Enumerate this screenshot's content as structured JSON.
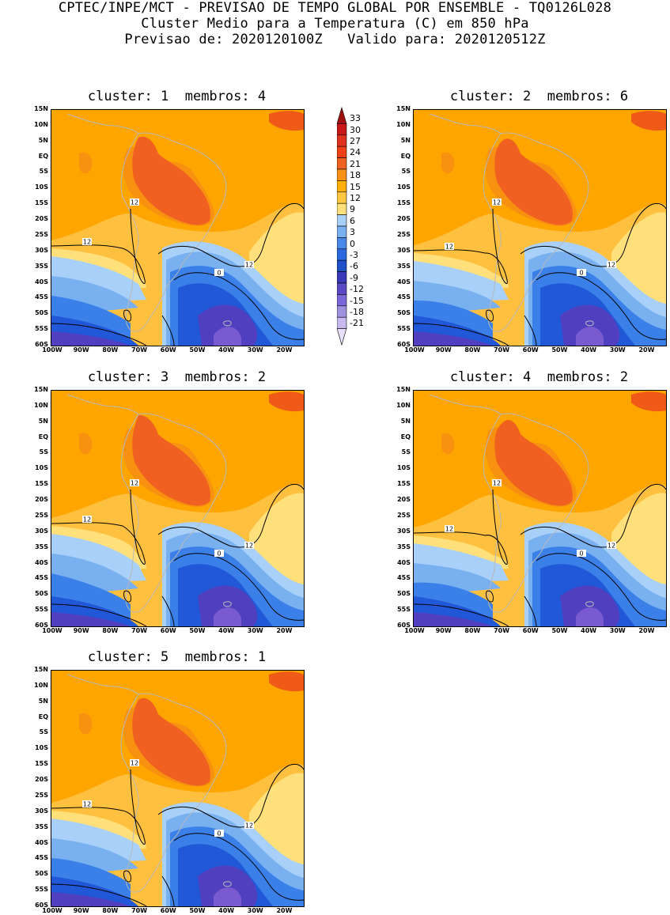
{
  "title": {
    "line1": "CPTEC/INPE/MCT - PREVISAO DE TEMPO GLOBAL POR ENSEMBLE - TQ0126L028",
    "line2": "Cluster Medio para a Temperatura (C) em 850 hPa",
    "line3": "Previsao de: 2020120100Z   Valido para: 2020120512Z"
  },
  "panels": [
    {
      "title": "cluster: 1  membros: 4"
    },
    {
      "title": "cluster: 2  membros: 6"
    },
    {
      "title": "cluster: 3  membros: 2"
    },
    {
      "title": "cluster: 4  membros: 2"
    },
    {
      "title": "cluster: 5  membros: 1"
    }
  ],
  "lat_labels": [
    "15N",
    "10N",
    "5N",
    "EQ",
    "5S",
    "10S",
    "15S",
    "20S",
    "25S",
    "30S",
    "35S",
    "40S",
    "45S",
    "50S",
    "55S",
    "60S"
  ],
  "lon_labels": [
    "100W",
    "90W",
    "80W",
    "70W",
    "60W",
    "50W",
    "40W",
    "30W",
    "20W"
  ],
  "contour_labels": {
    "warm": "12",
    "cold": "0"
  },
  "colorbar": {
    "labels": [
      "33",
      "30",
      "27",
      "24",
      "21",
      "18",
      "15",
      "12",
      "9",
      "6",
      "3",
      "0",
      "-3",
      "-6",
      "-9",
      "-12",
      "-15",
      "-18",
      "-21"
    ],
    "colors": [
      "#a01010",
      "#c81818",
      "#e03020",
      "#f04018",
      "#f06020",
      "#f89010",
      "#ffb000",
      "#ffc840",
      "#ffe07a",
      "#a8d0f8",
      "#78b0f0",
      "#4a88e8",
      "#2a68e0",
      "#2050c8",
      "#3a3ab8",
      "#5a4ac8",
      "#7a68d8",
      "#a090e0",
      "#c8b8f0",
      "#e8e0f8"
    ]
  },
  "palette": {
    "orange_dark": "#f06020",
    "orange_mid": "#f89010",
    "orange": "#ffa500",
    "yellow_orange": "#ffc040",
    "yellow": "#ffe07a",
    "light_blue": "#a8d0f8",
    "blue_mid": "#78b0f0",
    "blue": "#3a80e8",
    "blue_dark": "#2058d8",
    "purple": "#5040c0",
    "purple_dark": "#7a5ad0",
    "coast": "#b8b8b8",
    "contour": "#000000"
  }
}
